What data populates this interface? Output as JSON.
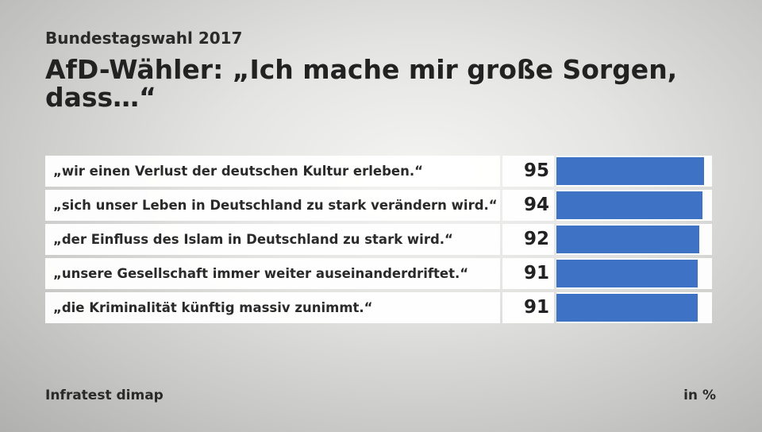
{
  "chart_data": {
    "type": "bar",
    "subtitle": "Bundestagswahl 2017",
    "title": "AfD-Wähler: „Ich mache mir große Sorgen, dass…“",
    "categories": [
      "„wir einen Verlust der deutschen Kultur erleben.“",
      "„sich unser Leben in Deutschland zu stark verändern wird.“",
      "„der Einfluss des Islam in Deutschland zu stark wird.“",
      "„unsere Gesellschaft immer weiter auseinanderdriftet.“",
      "„die Kriminalität künftig massiv zunimmt.“"
    ],
    "values": [
      95,
      94,
      92,
      91,
      91
    ],
    "ylim": [
      0,
      100
    ],
    "unit": "in %",
    "source": "Infratest dimap",
    "bar_color": "#3d72c5"
  }
}
